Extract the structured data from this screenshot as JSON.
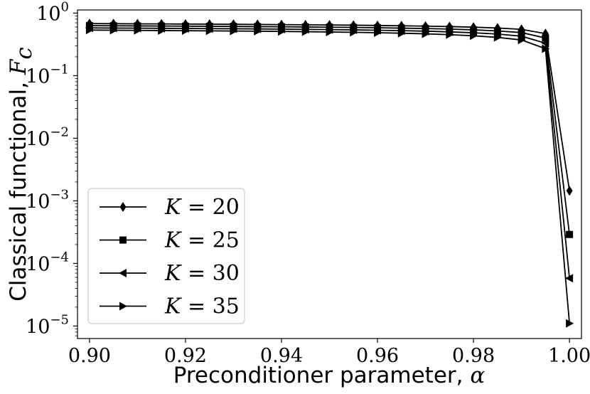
{
  "chart_data": {
    "type": "line",
    "title": "",
    "xlabel": {
      "text": "Preconditioner parameter, ",
      "symbol": "α"
    },
    "ylabel": {
      "text": "Classical functional, ",
      "symbol": "F",
      "subscript": "c"
    },
    "xlim": [
      0.8975,
      1.0025
    ],
    "ylim_log10": [
      -5.2,
      0.05
    ],
    "y_scale": "log",
    "x_ticks": [
      {
        "value": 0.9,
        "label": "0.90"
      },
      {
        "value": 0.92,
        "label": "0.92"
      },
      {
        "value": 0.94,
        "label": "0.94"
      },
      {
        "value": 0.96,
        "label": "0.96"
      },
      {
        "value": 0.98,
        "label": "0.98"
      },
      {
        "value": 1.0,
        "label": "1.00"
      }
    ],
    "y_ticks": [
      {
        "exp": 0,
        "base": "10",
        "sup": "0"
      },
      {
        "exp": -1,
        "base": "10",
        "sup": "−1"
      },
      {
        "exp": -2,
        "base": "10",
        "sup": "−2"
      },
      {
        "exp": -3,
        "base": "10",
        "sup": "−3"
      },
      {
        "exp": -4,
        "base": "10",
        "sup": "−4"
      },
      {
        "exp": -5,
        "base": "10",
        "sup": "−5"
      }
    ],
    "x": [
      0.9,
      0.905,
      0.91,
      0.915,
      0.92,
      0.925,
      0.93,
      0.935,
      0.94,
      0.945,
      0.95,
      0.955,
      0.96,
      0.965,
      0.97,
      0.975,
      0.98,
      0.985,
      0.99,
      0.995,
      1.0
    ],
    "series": [
      {
        "name": "K = 20",
        "lhs": "K",
        "rhs": "20",
        "marker": "diamond",
        "values": [
          0.68,
          0.677,
          0.674,
          0.671,
          0.668,
          0.665,
          0.662,
          0.658,
          0.654,
          0.65,
          0.645,
          0.64,
          0.634,
          0.627,
          0.619,
          0.609,
          0.596,
          0.578,
          0.55,
          0.47,
          0.00145
        ]
      },
      {
        "name": "K = 25",
        "lhs": "K",
        "rhs": "25",
        "marker": "square",
        "values": [
          0.63,
          0.627,
          0.624,
          0.621,
          0.618,
          0.615,
          0.612,
          0.608,
          0.604,
          0.6,
          0.595,
          0.589,
          0.583,
          0.575,
          0.566,
          0.555,
          0.54,
          0.519,
          0.488,
          0.4,
          0.00029
        ]
      },
      {
        "name": "K = 30",
        "lhs": "K",
        "rhs": "30",
        "marker": "triangle-left",
        "values": [
          0.58,
          0.577,
          0.574,
          0.571,
          0.568,
          0.565,
          0.562,
          0.558,
          0.554,
          0.55,
          0.545,
          0.539,
          0.532,
          0.524,
          0.514,
          0.501,
          0.485,
          0.462,
          0.428,
          0.33,
          5.8e-05
        ]
      },
      {
        "name": "K = 35",
        "lhs": "K",
        "rhs": "35",
        "marker": "triangle-right",
        "values": [
          0.535,
          0.532,
          0.529,
          0.526,
          0.523,
          0.52,
          0.517,
          0.513,
          0.509,
          0.504,
          0.499,
          0.493,
          0.486,
          0.477,
          0.466,
          0.452,
          0.434,
          0.409,
          0.372,
          0.27,
          1.1e-05
        ]
      }
    ],
    "legend": "lower-left",
    "grid": false,
    "colors": {
      "line": "#000000",
      "frame": "#000000",
      "legend_border": "#cccccc"
    }
  }
}
